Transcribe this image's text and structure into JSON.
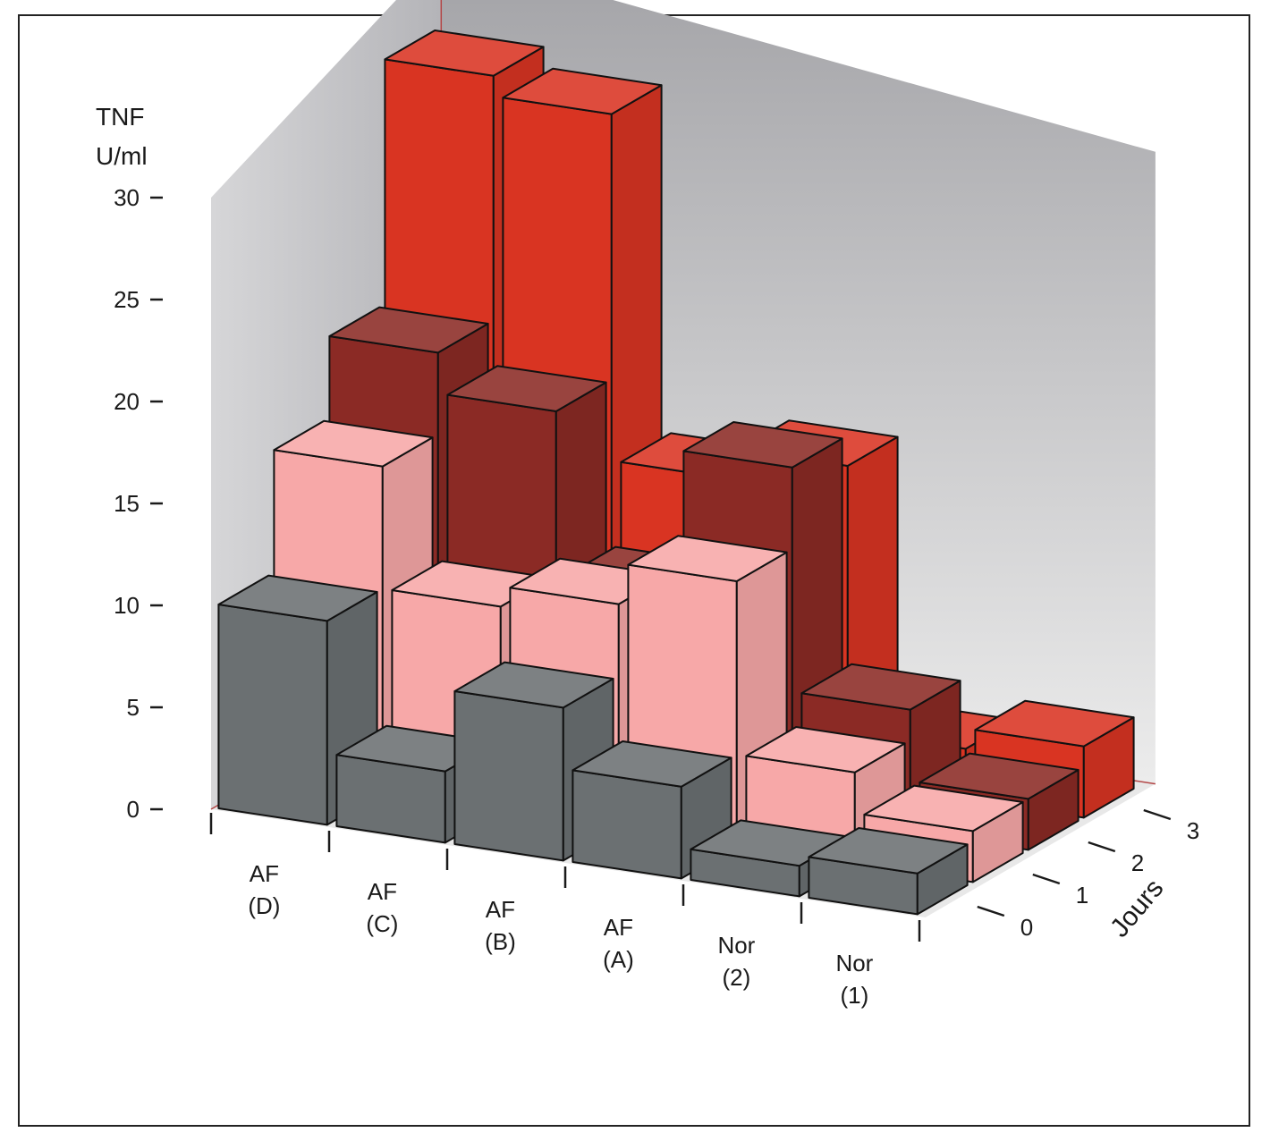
{
  "chart_data": {
    "type": "bar",
    "subtype": "3d-grouped-bar",
    "title": "",
    "z_title_lines": [
      "TNF",
      "U/ml"
    ],
    "y_title": "Jours",
    "z_ticks": [
      "0",
      "5",
      "10",
      "15",
      "20",
      "25",
      "30"
    ],
    "zlim": [
      0,
      30
    ],
    "categories": [
      {
        "line1": "AF",
        "line2": "(D)"
      },
      {
        "line1": "AF",
        "line2": "(C)"
      },
      {
        "line1": "AF",
        "line2": "(B)"
      },
      {
        "line1": "AF",
        "line2": "(A)"
      },
      {
        "line1": "Nor",
        "line2": "(2)"
      },
      {
        "line1": "Nor",
        "line2": "(1)"
      }
    ],
    "series": [
      {
        "name": "0",
        "color": "#6b7072",
        "values": [
          10,
          3.5,
          7.5,
          4.5,
          1.5,
          2
        ]
      },
      {
        "name": "1",
        "color": "#f7a8a8",
        "values": [
          16,
          10,
          11,
          13,
          4.5,
          2.5
        ]
      },
      {
        "name": "2",
        "color": "#8b2a25",
        "values": [
          20,
          18,
          10,
          17,
          6,
          2.5
        ]
      },
      {
        "name": "3",
        "color": "#d93422",
        "values": [
          32,
          31,
          14,
          15.5,
          2.5,
          3.5
        ]
      }
    ],
    "grid": false,
    "colors": {
      "wall_top": "#a2a2a6",
      "wall_bottom": "#ececec",
      "floor": "#e8e8e8",
      "edge": "#b34747",
      "outline": "#111111"
    }
  }
}
